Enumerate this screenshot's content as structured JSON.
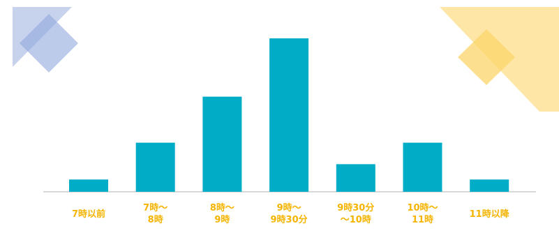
{
  "colors": {
    "bar": "#00acc6",
    "label": "#f5b400",
    "baseline": "#d8d8d8",
    "deco_blue": "#8fa8dc",
    "deco_yellow": "#fcd66a"
  },
  "decorations": [
    "blue-diamonds",
    "yellow-diamonds"
  ],
  "chart_data": {
    "type": "bar",
    "categories": [
      [
        "7時以前"
      ],
      [
        "7時〜",
        "8時"
      ],
      [
        "8時〜",
        "9時"
      ],
      [
        "9時〜",
        "9時30分"
      ],
      [
        "9時30分",
        "〜10時"
      ],
      [
        "10時〜",
        "11時"
      ],
      [
        "11時以降"
      ]
    ],
    "values": [
      4,
      16,
      31,
      50,
      9,
      16,
      4
    ],
    "ylim": [
      0,
      50
    ],
    "title": "",
    "xlabel": "",
    "ylabel": "",
    "grid": false
  }
}
